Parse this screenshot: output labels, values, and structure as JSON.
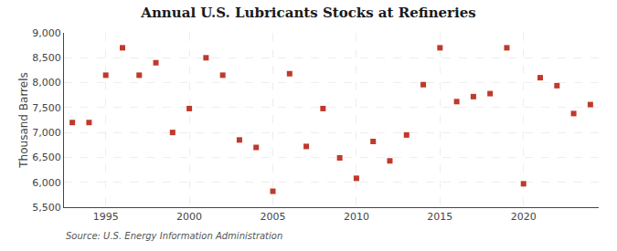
{
  "chart_data": {
    "type": "scatter",
    "title": "Annual U.S. Lubricants Stocks at Refineries",
    "ylabel": "Thousand Barrels",
    "annotations": [
      "Source: U.S. Energy Information Administration"
    ],
    "x": [
      1993,
      1994,
      1995,
      1996,
      1997,
      1998,
      1999,
      2000,
      2001,
      2002,
      2003,
      2004,
      2005,
      2006,
      2007,
      2008,
      2009,
      2010,
      2011,
      2012,
      2013,
      2014,
      2015,
      2016,
      2017,
      2018,
      2019,
      2020,
      2021,
      2022,
      2023,
      2024
    ],
    "values": [
      7200,
      7200,
      8150,
      8700,
      8150,
      8400,
      7000,
      7480,
      8500,
      8150,
      6850,
      6700,
      5820,
      8180,
      6720,
      7480,
      6490,
      6080,
      6820,
      6430,
      6950,
      7960,
      8700,
      7620,
      7720,
      7780,
      8700,
      5970,
      8100,
      7940,
      7380,
      7560
    ],
    "color": "#c0392b",
    "marker": "square",
    "xlim": [
      1992.5,
      2024.5
    ],
    "xticks": [
      1995,
      2000,
      2005,
      2010,
      2015,
      2020
    ],
    "ylim": [
      5500,
      9000
    ],
    "yticks": [
      {
        "value": 5500,
        "label": "5,500"
      },
      {
        "value": 6000,
        "label": "6,000"
      },
      {
        "value": 6500,
        "label": "6,500"
      },
      {
        "value": 7000,
        "label": "7,000"
      },
      {
        "value": 7500,
        "label": "7,500"
      },
      {
        "value": 8000,
        "label": "8,000"
      },
      {
        "value": 8500,
        "label": "8,500"
      },
      {
        "value": 9000,
        "label": "9,000"
      }
    ],
    "grid": true
  }
}
